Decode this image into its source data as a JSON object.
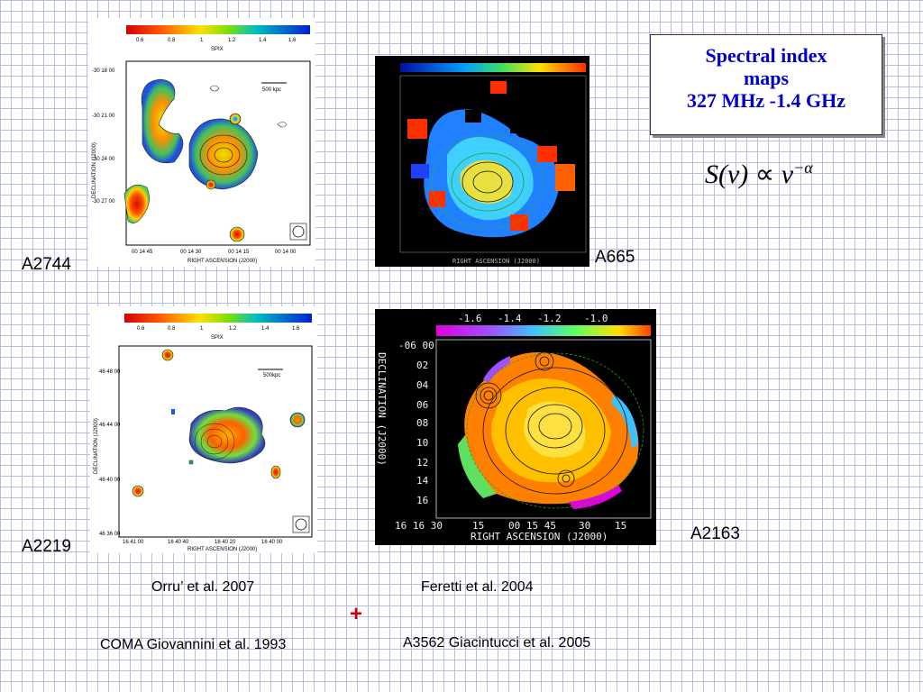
{
  "title": {
    "line1": "Spectral index",
    "line2": "maps",
    "line3": "327 MHz -1.4 GHz"
  },
  "formula": {
    "lhs": "S(ν)",
    "prop": "∝",
    "base": "ν",
    "exp": "−α"
  },
  "plus": "+",
  "panels": {
    "a2744": {
      "label": "A2744",
      "colorbar_ticks": [
        "0.6",
        "0.8",
        "1",
        "1.2",
        "1.4",
        "1.6"
      ],
      "colorbar_title": "SPIX",
      "scale": "500 kpc",
      "yticks": [
        "-30 18 00",
        "-30 21 00",
        "-30 24 00",
        "-30 27 00"
      ],
      "xticks": [
        "00 14 45",
        "00 14 30",
        "00 14 15",
        "00 14 00"
      ],
      "xlabel": "RIGHT ASCENSION (J2000)",
      "ylabel": "DECLINATION (J2000)"
    },
    "a665": {
      "label": "A665",
      "xlabel": "RIGHT ASCENSION (J2000)"
    },
    "a2219": {
      "label": "A2219",
      "colorbar_ticks": [
        "0.6",
        "0.8",
        "1",
        "1.2",
        "1.4",
        "1.6"
      ],
      "colorbar_title": "SPIX",
      "scale": "500kpc",
      "yticks": [
        "46 48 00",
        "46 44 00",
        "46 40 00",
        "46 36 00"
      ],
      "xticks": [
        "16 41 00",
        "16 40 40",
        "16 40 20",
        "16 40 00"
      ],
      "xlabel": "RIGHT ASCENSION (J2000)",
      "ylabel": "DECLINATION (J2000)"
    },
    "a2163": {
      "label": "A2163",
      "colorbar_ticks": [
        "-1.6",
        "-1.4",
        "-1.2",
        "-1.0"
      ],
      "yticks": [
        "-06 00",
        "02",
        "04",
        "06",
        "08",
        "10",
        "12",
        "14",
        "16"
      ],
      "xticks": [
        "16 16 30",
        "15",
        "00 15 45",
        "30",
        "15"
      ],
      "xlabel": "RIGHT ASCENSION (J2000)",
      "ylabel": "DECLINATION (J2000)"
    }
  },
  "references": {
    "orru": "Orru’ et  al. 2007",
    "feretti": "Feretti  et  al. 2004",
    "coma": "COMA Giovannini et al. 1993",
    "a3562": "A3562 Giacintucci et al. 2005"
  }
}
